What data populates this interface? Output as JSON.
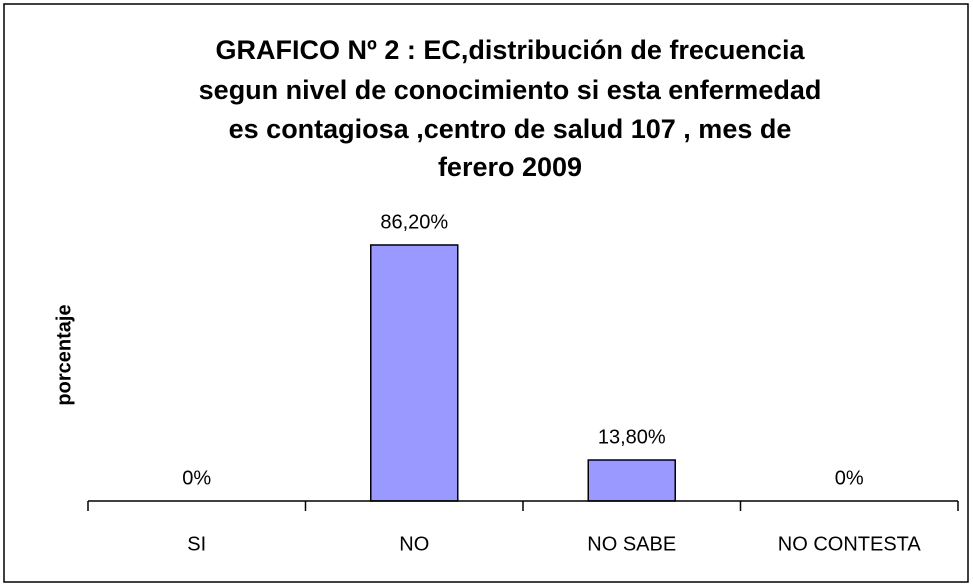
{
  "chart_data": {
    "type": "bar",
    "title": [
      "GRAFICO Nº 2 : EC,distribución de frecuencia",
      "segun nivel de conocimiento si esta enfermedad",
      "es contagiosa ,centro de salud 107 , mes de",
      "ferero 2009"
    ],
    "y_label": "porcentaje",
    "categories": [
      "SI",
      "NO",
      "NO SABE",
      "NO CONTESTA"
    ],
    "values": [
      0,
      86.2,
      13.8,
      0
    ],
    "value_labels": [
      "0%",
      "86,20%",
      "13,80%",
      "0%"
    ],
    "color": "#9999ff",
    "ylim": [
      0,
      100
    ]
  }
}
